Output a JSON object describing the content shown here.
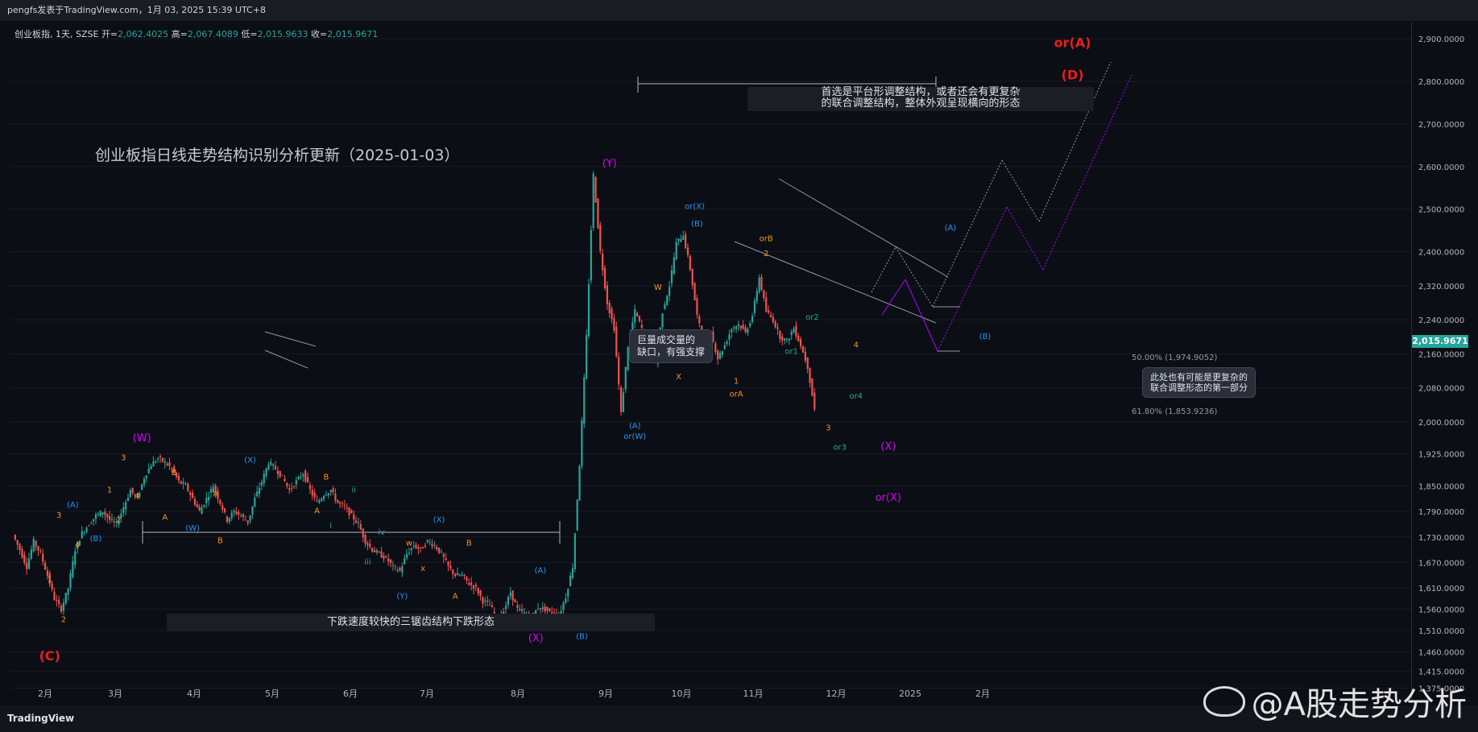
{
  "header": {
    "publisher_line": "pengfs发表于TradingView.com，1月 03, 2025 15:39 UTC+8"
  },
  "symbol_line": {
    "symbol": "创业板指, 1天, SZSE",
    "open_label": "开=",
    "open": "2,062.4025",
    "high_label": "高=",
    "high": "2,067.4089",
    "low_label": "低=",
    "low": "2,015.9633",
    "close_label": "收=",
    "close": "2,015.9671"
  },
  "chart_title": "创业板指日线走势结构识别分析更新（2025-01-03）",
  "annotations": {
    "gap_note": "巨量成交量的\n缺口，有强支撑",
    "top_range": "首选是平台形调整结构，或者还会有更复杂\n的联合调整结构，整体外观呈现横向的形态",
    "bottom_range": "下跌速度较快的三锯齿结构下跌形态",
    "right_note": "此处也有可能是更复杂的\n联合调整形态的第一部分",
    "fib_50": "50.00% (1,974.9052)",
    "fib_618": "61.80% (1,853.9236)"
  },
  "last_price": "2,015.9671",
  "branding": {
    "logo": "TradingView",
    "watermark": "@A股走势分析"
  },
  "colors": {
    "up": "#26a69a",
    "down": "#ef5350",
    "orange": "#f7931a",
    "blue": "#2196f3",
    "magenta": "#d500f9",
    "red": "#e91e1e",
    "teal": "#26a69a"
  },
  "chart_data": {
    "type": "candlestick",
    "title": "创业板指日线走势结构识别分析更新（2025-01-03）",
    "ylim": [
      1340,
      2940
    ],
    "y_ticks": [
      "2,900.0000",
      "2,800.0000",
      "2,700.0000",
      "2,600.0000",
      "2,500.0000",
      "2,400.0000",
      "2,320.0000",
      "2,240.0000",
      "2,160.0000",
      "2,080.0000",
      "2,000.0000",
      "1,925.0000",
      "1,850.0000",
      "1,790.0000",
      "1,730.0000",
      "1,670.0000",
      "1,610.0000",
      "1,560.0000",
      "1,510.0000",
      "1,460.0000",
      "1,415.0000",
      "1,375.0000"
    ],
    "x_ticks": [
      "2月",
      "3月",
      "4月",
      "5月",
      "6月",
      "7月",
      "8月",
      "9月",
      "10月",
      "11月",
      "12月",
      "2025",
      "2月"
    ],
    "price_path": [
      [
        0,
        1735
      ],
      [
        3,
        1700
      ],
      [
        6,
        1660
      ],
      [
        9,
        1720
      ],
      [
        12,
        1690
      ],
      [
        15,
        1640
      ],
      [
        18,
        1585
      ],
      [
        21,
        1560
      ],
      [
        24,
        1610
      ],
      [
        27,
        1700
      ],
      [
        30,
        1740
      ],
      [
        33,
        1760
      ],
      [
        36,
        1780
      ],
      [
        39,
        1790
      ],
      [
        42,
        1770
      ],
      [
        45,
        1760
      ],
      [
        48,
        1800
      ],
      [
        51,
        1840
      ],
      [
        54,
        1820
      ],
      [
        57,
        1870
      ],
      [
        60,
        1900
      ],
      [
        63,
        1915
      ],
      [
        66,
        1905
      ],
      [
        69,
        1890
      ],
      [
        72,
        1860
      ],
      [
        75,
        1850
      ],
      [
        78,
        1820
      ],
      [
        81,
        1790
      ],
      [
        84,
        1820
      ],
      [
        87,
        1850
      ],
      [
        90,
        1810
      ],
      [
        93,
        1770
      ],
      [
        96,
        1790
      ],
      [
        99,
        1780
      ],
      [
        102,
        1765
      ],
      [
        105,
        1820
      ],
      [
        108,
        1860
      ],
      [
        111,
        1905
      ],
      [
        114,
        1890
      ],
      [
        117,
        1870
      ],
      [
        120,
        1840
      ],
      [
        123,
        1860
      ],
      [
        126,
        1880
      ],
      [
        129,
        1840
      ],
      [
        132,
        1810
      ],
      [
        135,
        1830
      ],
      [
        138,
        1840
      ],
      [
        141,
        1810
      ],
      [
        144,
        1800
      ],
      [
        147,
        1780
      ],
      [
        150,
        1760
      ],
      [
        153,
        1720
      ],
      [
        156,
        1700
      ],
      [
        159,
        1690
      ],
      [
        162,
        1680
      ],
      [
        165,
        1660
      ],
      [
        168,
        1650
      ],
      [
        171,
        1690
      ],
      [
        174,
        1710
      ],
      [
        177,
        1700
      ],
      [
        180,
        1720
      ],
      [
        183,
        1710
      ],
      [
        186,
        1690
      ],
      [
        189,
        1660
      ],
      [
        192,
        1640
      ],
      [
        195,
        1640
      ],
      [
        198,
        1620
      ],
      [
        201,
        1610
      ],
      [
        204,
        1580
      ],
      [
        207,
        1570
      ],
      [
        210,
        1540
      ],
      [
        213,
        1555
      ],
      [
        216,
        1600
      ],
      [
        219,
        1560
      ],
      [
        222,
        1550
      ],
      [
        225,
        1540
      ],
      [
        228,
        1565
      ],
      [
        231,
        1560
      ],
      [
        234,
        1550
      ],
      [
        237,
        1545
      ],
      [
        240,
        1590
      ],
      [
        243,
        1660
      ],
      [
        246,
        1900
      ],
      [
        249,
        2200
      ],
      [
        252,
        2580
      ],
      [
        255,
        2400
      ],
      [
        258,
        2280
      ],
      [
        261,
        2220
      ],
      [
        264,
        2020
      ],
      [
        267,
        2180
      ],
      [
        270,
        2260
      ],
      [
        273,
        2220
      ],
      [
        276,
        2160
      ],
      [
        279,
        2140
      ],
      [
        282,
        2260
      ],
      [
        285,
        2320
      ],
      [
        288,
        2420
      ],
      [
        291,
        2440
      ],
      [
        294,
        2360
      ],
      [
        297,
        2250
      ],
      [
        300,
        2180
      ],
      [
        303,
        2210
      ],
      [
        306,
        2150
      ],
      [
        309,
        2180
      ],
      [
        312,
        2220
      ],
      [
        315,
        2230
      ],
      [
        318,
        2210
      ],
      [
        321,
        2250
      ],
      [
        324,
        2340
      ],
      [
        327,
        2260
      ],
      [
        330,
        2240
      ],
      [
        333,
        2200
      ],
      [
        336,
        2190
      ],
      [
        339,
        2220
      ],
      [
        342,
        2180
      ],
      [
        345,
        2130
      ],
      [
        348,
        2030
      ]
    ],
    "wave_labels": [
      {
        "text": "(C)",
        "x": 16,
        "y": 1440,
        "color": "red"
      },
      {
        "text": "1",
        "x": 16,
        "y": 1625,
        "color": "orange"
      },
      {
        "text": "2",
        "x": 22,
        "y": 1530,
        "color": "orange"
      },
      {
        "text": "3",
        "x": 20,
        "y": 1775,
        "color": "orange"
      },
      {
        "text": "4",
        "x": 28,
        "y": 1705,
        "color": "orange"
      },
      {
        "text": "(A)",
        "x": 26,
        "y": 1800,
        "color": "blue"
      },
      {
        "text": "(B)",
        "x": 36,
        "y": 1720,
        "color": "blue"
      },
      {
        "text": "1",
        "x": 42,
        "y": 1835,
        "color": "orange"
      },
      {
        "text": "2",
        "x": 46,
        "y": 1765,
        "color": "orange"
      },
      {
        "text": "3",
        "x": 48,
        "y": 1910,
        "color": "orange"
      },
      {
        "text": "4",
        "x": 54,
        "y": 1820,
        "color": "orange"
      },
      {
        "text": "(W)",
        "x": 56,
        "y": 1955,
        "color": "magenta"
      },
      {
        "text": "A",
        "x": 66,
        "y": 1770,
        "color": "orange"
      },
      {
        "text": "B",
        "x": 70,
        "y": 1875,
        "color": "orange"
      },
      {
        "text": "(W)",
        "x": 78,
        "y": 1745,
        "color": "blue"
      },
      {
        "text": "A",
        "x": 88,
        "y": 1825,
        "color": "orange"
      },
      {
        "text": "B",
        "x": 90,
        "y": 1715,
        "color": "orange"
      },
      {
        "text": "(X)",
        "x": 103,
        "y": 1905,
        "color": "blue"
      },
      {
        "text": "B",
        "x": 136,
        "y": 1865,
        "color": "orange"
      },
      {
        "text": "A",
        "x": 132,
        "y": 1785,
        "color": "orange"
      },
      {
        "text": "ii",
        "x": 148,
        "y": 1835,
        "color": "teal"
      },
      {
        "text": "i",
        "x": 138,
        "y": 1750,
        "color": "teal"
      },
      {
        "text": "iii",
        "x": 154,
        "y": 1665,
        "color": "teal"
      },
      {
        "text": "iv",
        "x": 160,
        "y": 1735,
        "color": "teal"
      },
      {
        "text": "w",
        "x": 172,
        "y": 1710,
        "color": "orange"
      },
      {
        "text": "x",
        "x": 178,
        "y": 1650,
        "color": "orange"
      },
      {
        "text": "(Y)",
        "x": 169,
        "y": 1585,
        "color": "blue"
      },
      {
        "text": "(X)",
        "x": 185,
        "y": 1765,
        "color": "blue"
      },
      {
        "text": "B",
        "x": 198,
        "y": 1710,
        "color": "orange"
      },
      {
        "text": "A",
        "x": 192,
        "y": 1585,
        "color": "orange"
      },
      {
        "text": "(A)",
        "x": 229,
        "y": 1645,
        "color": "blue"
      },
      {
        "text": "(X)",
        "x": 227,
        "y": 1485,
        "color": "magenta"
      },
      {
        "text": "(B)",
        "x": 247,
        "y": 1490,
        "color": "blue"
      },
      {
        "text": "(Y)",
        "x": 259,
        "y": 2600,
        "color": "magenta"
      },
      {
        "text": "(A)",
        "x": 270,
        "y": 1985,
        "color": "blue"
      },
      {
        "text": "or(W)",
        "x": 270,
        "y": 1960,
        "color": "blue"
      },
      {
        "text": "W",
        "x": 280,
        "y": 2310,
        "color": "orange"
      },
      {
        "text": "X",
        "x": 289,
        "y": 2100,
        "color": "orange"
      },
      {
        "text": "or(X)",
        "x": 296,
        "y": 2500,
        "color": "blue"
      },
      {
        "text": "(B)",
        "x": 297,
        "y": 2460,
        "color": "blue"
      },
      {
        "text": "orB",
        "x": 327,
        "y": 2425,
        "color": "orange"
      },
      {
        "text": "2",
        "x": 327,
        "y": 2390,
        "color": "orange"
      },
      {
        "text": "1",
        "x": 314,
        "y": 2090,
        "color": "orange"
      },
      {
        "text": "orA",
        "x": 314,
        "y": 2060,
        "color": "orange"
      },
      {
        "text": "or2",
        "x": 347,
        "y": 2240,
        "color": "teal"
      },
      {
        "text": "or1",
        "x": 338,
        "y": 2160,
        "color": "teal"
      },
      {
        "text": "4",
        "x": 366,
        "y": 2175,
        "color": "orange"
      },
      {
        "text": "or4",
        "x": 366,
        "y": 2055,
        "color": "teal"
      },
      {
        "text": "3",
        "x": 354,
        "y": 1980,
        "color": "orange"
      },
      {
        "text": "or3",
        "x": 359,
        "y": 1935,
        "color": "teal"
      },
      {
        "text": "(X)",
        "x": 380,
        "y": 1935,
        "color": "magenta"
      },
      {
        "text": "or(X)",
        "x": 380,
        "y": 1815,
        "color": "magenta"
      },
      {
        "text": "(A)",
        "x": 407,
        "y": 2450,
        "color": "blue"
      },
      {
        "text": "(B)",
        "x": 422,
        "y": 2195,
        "color": "blue"
      },
      {
        "text": "or(A)",
        "x": 460,
        "y": 2880,
        "color": "red"
      },
      {
        "text": "(D)",
        "x": 460,
        "y": 2805,
        "color": "red"
      }
    ]
  }
}
